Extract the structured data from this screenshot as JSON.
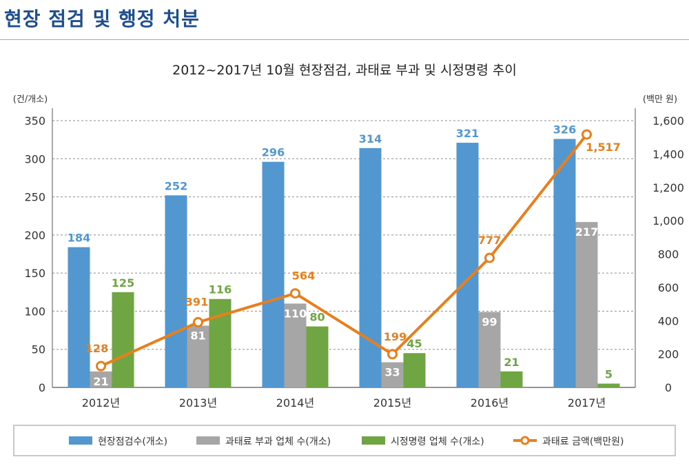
{
  "page": {
    "title": "현장 점검 및 행정 처분"
  },
  "chart_data": {
    "type": "bar",
    "title": "2012~2017년 10월 현장점검, 과태료 부과 및 시정명령 추이",
    "ylabel_left": "(건/개소)",
    "ylabel_right": "(백만 원)",
    "categories": [
      "2012년",
      "2013년",
      "2014년",
      "2015년",
      "2016년",
      "2017년"
    ],
    "y_left": {
      "min": 0,
      "max": 350,
      "ticks": [
        0,
        50,
        100,
        150,
        200,
        250,
        300,
        350
      ],
      "tick_labels": [
        "0",
        "50",
        "100",
        "150",
        "200",
        "250",
        "300",
        "350"
      ]
    },
    "y_right": {
      "min": 0,
      "max": 1600,
      "ticks": [
        0,
        200,
        400,
        600,
        800,
        1000,
        1200,
        1400,
        1600
      ],
      "tick_labels": [
        "0",
        "200",
        "400",
        "600",
        "800",
        "1,000",
        "1,200",
        "1,400",
        "1,600"
      ]
    },
    "grid": true,
    "legend_position": "bottom",
    "series": [
      {
        "name": "현장점검수(개소)",
        "type": "bar",
        "axis": "left",
        "color": "#5397d0",
        "label_color": "#5397d0",
        "values": [
          184,
          252,
          296,
          314,
          321,
          326
        ],
        "labels": [
          "184",
          "252",
          "296",
          "314",
          "321",
          "326"
        ]
      },
      {
        "name": "과태료 부과 업체 수(개소)",
        "type": "bar",
        "axis": "left",
        "color": "#a6a6a6",
        "label_color": "#ffffff",
        "values": [
          21,
          81,
          110,
          33,
          99,
          217
        ],
        "labels": [
          "21",
          "81",
          "110",
          "33",
          "99",
          "217"
        ]
      },
      {
        "name": "시정명령 업체 수(개소)",
        "type": "bar",
        "axis": "left",
        "color": "#6fa543",
        "label_color": "#6fa543",
        "values": [
          125,
          116,
          80,
          45,
          21,
          5
        ],
        "labels": [
          "125",
          "116",
          "80",
          "45",
          "21",
          "5"
        ]
      },
      {
        "name": "과태료 금액(백만원)",
        "type": "line",
        "axis": "right",
        "color": "#e97f1c",
        "label_color": "#e97f1c",
        "values": [
          128,
          391,
          564,
          199,
          777,
          1517
        ],
        "labels": [
          "128",
          "391",
          "564",
          "199",
          "777",
          "1,517"
        ]
      }
    ]
  }
}
